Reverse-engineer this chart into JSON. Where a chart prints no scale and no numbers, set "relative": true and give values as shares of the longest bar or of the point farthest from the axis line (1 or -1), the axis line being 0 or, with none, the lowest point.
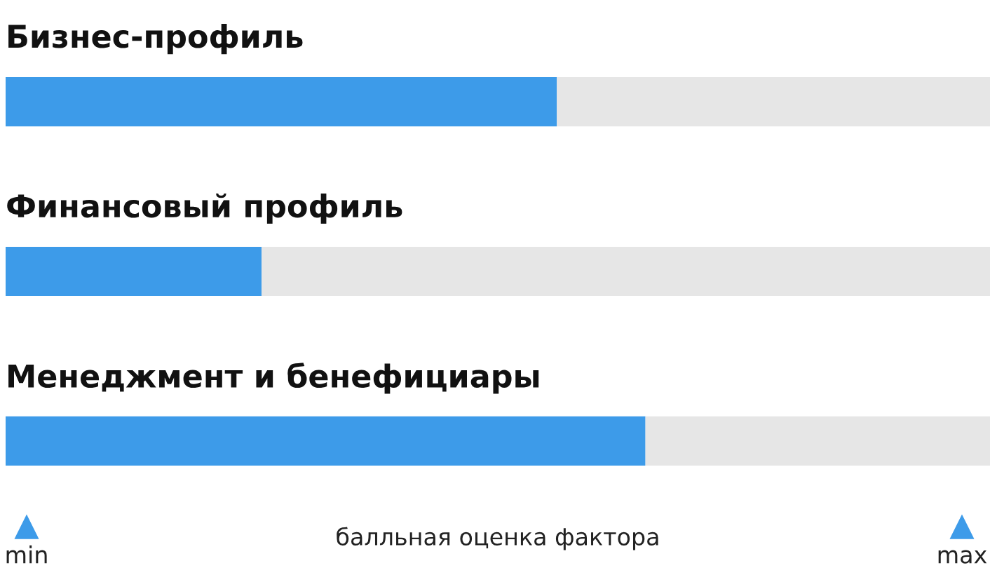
{
  "chart_data": {
    "type": "bar",
    "orientation": "horizontal",
    "stacked": true,
    "relative": true,
    "categories": [
      "Бизнес-профиль",
      "Финансовый профиль",
      "Менеджмент и бенефициары"
    ],
    "series": [
      {
        "color": "#3d9be9",
        "values": [
          0.56,
          0.26,
          0.65
        ]
      },
      {
        "color": "#e6e6e6",
        "values": [
          0.44,
          0.74,
          0.35
        ]
      }
    ],
    "xlabel": "балльная оценка фактора",
    "annotations": [
      "min",
      "max"
    ]
  }
}
